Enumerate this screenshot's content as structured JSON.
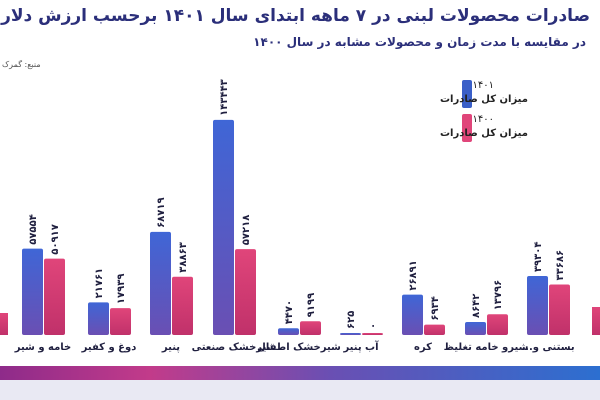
{
  "title": "صادرات محصولات لبنی در ۷ ماهه ابتدای سال ۱۴۰۱ برحسب ارزش دلار",
  "subtitle": "در مقایسه با مدت زمان و محصولات مشابه در سال ۱۴۰۰",
  "source": "منبع: گمرک",
  "colors": {
    "series_1401": "#3a5fc8",
    "series_1400": "#e0457a",
    "title": "#2b2f7a",
    "label": "#1f1f3f"
  },
  "legend": [
    {
      "year": "۱۴۰۱",
      "label": "میزان کل صادرات",
      "color": "#3a5fc8"
    },
    {
      "year": "۱۴۰۰",
      "label": "میزان کل صادرات",
      "color": "#e0457a"
    }
  ],
  "chart_data": {
    "type": "bar",
    "categories": [
      "خامه و شیر",
      "دوغ و کفیر",
      "پنیر",
      "شیرخشک صنعتی",
      "شیرخشک اطفال",
      "آب پنیر",
      "کره",
      "شیرو خامه تغلیظ",
      "بستنی و..."
    ],
    "series": [
      {
        "name": "۱۴۰۱",
        "values": [
          57554,
          21761,
          68719,
          143443,
          4470,
          625,
          26891,
          8642,
          39304
        ],
        "labels": [
          "۵۷۵۵۴",
          "۲۱۷۶۱",
          "۶۸۷۱۹",
          "۱۴۳۴۴۳",
          "۴۴۷۰",
          "۶۲۵",
          "۲۶۸۹۱",
          "۸۶۴۲",
          "۳۹۳۰۴"
        ]
      },
      {
        "name": "۱۴۰۰",
        "values": [
          50917,
          17939,
          38863,
          57218,
          9199,
          0,
          6934,
          13796,
          33686
        ],
        "labels": [
          "۵۰۹۱۷",
          "۱۷۹۳۹",
          "۳۸۸۶۳",
          "۵۷۲۱۸",
          "۹۱۹۹",
          "۰",
          "۶۹۳۴",
          "۱۳۷۹۶",
          "۳۳۶۸۶"
        ]
      }
    ],
    "edge_left": {
      "values": [
        1,
        1
      ]
    },
    "edge_right": {
      "values": [
        1,
        1
      ]
    },
    "ylim": [
      0,
      150000
    ]
  }
}
